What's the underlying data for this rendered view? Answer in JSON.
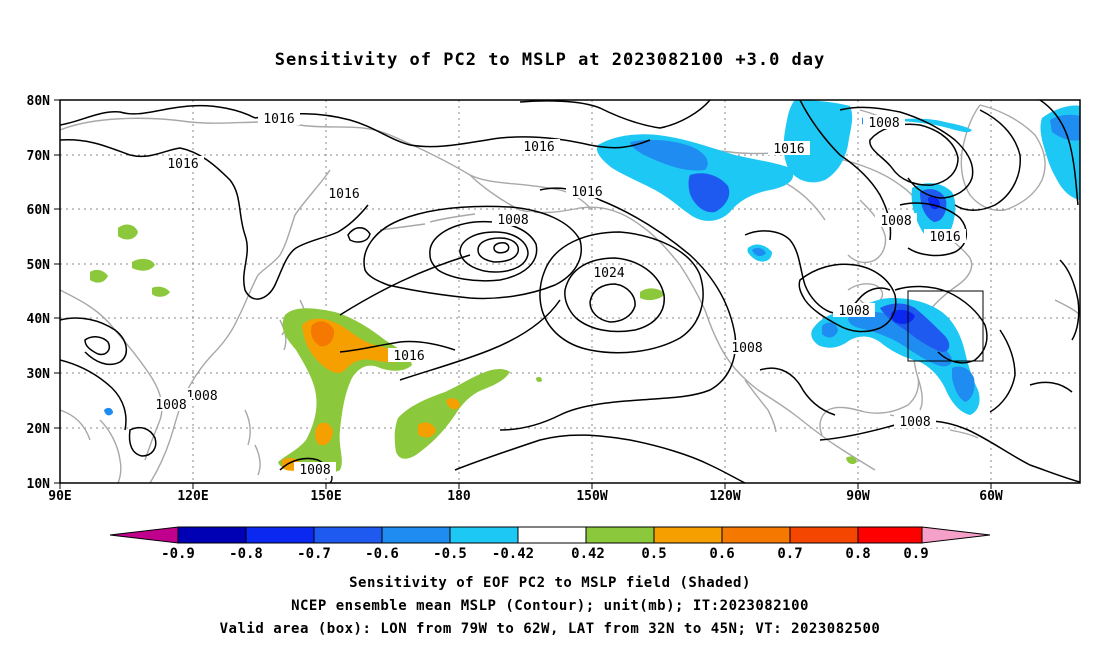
{
  "title": "Sensitivity of PC2 to MSLP at 2023082100 +3.0 day",
  "lat_labels": [
    "10N",
    "20N",
    "30N",
    "40N",
    "50N",
    "60N",
    "70N",
    "80N"
  ],
  "lon_labels": [
    "90E",
    "120E",
    "150E",
    "180",
    "150W",
    "120W",
    "90W",
    "60W"
  ],
  "contour_labels": [
    {
      "text": "1016"
    },
    {
      "text": "1016"
    },
    {
      "text": "1016"
    },
    {
      "text": "1016"
    },
    {
      "text": "1016"
    },
    {
      "text": "1008"
    },
    {
      "text": "1024"
    },
    {
      "text": "1016"
    },
    {
      "text": "1008"
    },
    {
      "text": "1008"
    },
    {
      "text": "1008"
    },
    {
      "text": "1008"
    },
    {
      "text": "1008"
    },
    {
      "text": "1016"
    },
    {
      "text": "1008"
    },
    {
      "text": "1008"
    },
    {
      "text": "1016"
    },
    {
      "text": "1008"
    }
  ],
  "colorbar": {
    "labels": [
      "-0.9",
      "-0.8",
      "-0.7",
      "-0.6",
      "-0.5",
      "-0.42",
      "0.42",
      "0.5",
      "0.6",
      "0.7",
      "0.8",
      "0.9"
    ],
    "colors": [
      "#c0008c",
      "#0000b4",
      "#0a28f0",
      "#1e5af0",
      "#1e8cf0",
      "#1ec8f5",
      "#ffffff",
      "#8cc83c",
      "#f5a000",
      "#f57800",
      "#f54600",
      "#ff0000",
      "#f5a0c8"
    ]
  },
  "captions": [
    "Sensitivity of EOF PC2 to MSLP field (Shaded)",
    "NCEP ensemble mean MSLP (Contour); unit(mb); IT:2023082100",
    "Valid area (box): LON from 79W to 62W, LAT from 32N to 45N; VT: 2023082500"
  ]
}
